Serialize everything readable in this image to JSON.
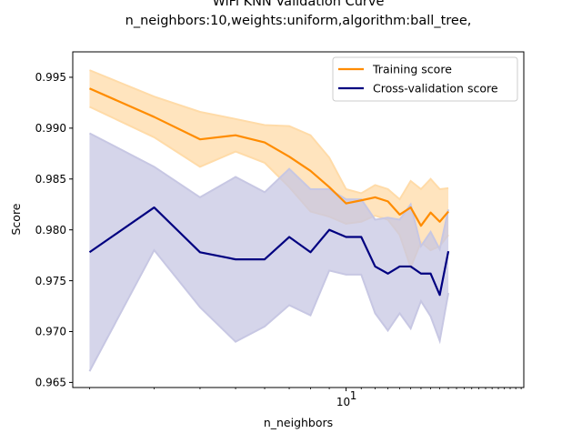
{
  "chart_data": {
    "type": "line",
    "title": "WiFi KNN Validation Curve",
    "subtitle": "n_neighbors:10,weights:uniform,algorithm:ball_tree,",
    "xlabel": "n_neighbors",
    "ylabel": "Score",
    "x_scale": "log",
    "xlim": [
      1.8,
      30.5
    ],
    "ylim": [
      0.9645,
      0.9975
    ],
    "yticks": [
      "0.965",
      "0.970",
      "0.975",
      "0.980",
      "0.985",
      "0.990",
      "0.995"
    ],
    "xtick_label": "10",
    "grid": false,
    "legend_position": "upper right",
    "x": [
      2,
      3,
      4,
      5,
      6,
      7,
      8,
      9,
      10,
      11,
      12,
      13,
      14,
      15,
      16,
      17,
      18,
      19
    ],
    "series": [
      {
        "name": "Training score",
        "color": "#ff8c00",
        "band_color": "#ffdba8",
        "mean": [
          0.9939,
          0.9911,
          0.9889,
          0.9893,
          0.9886,
          0.9872,
          0.9858,
          0.9842,
          0.9826,
          0.9829,
          0.9832,
          0.9828,
          0.9815,
          0.9822,
          0.9804,
          0.9817,
          0.9808,
          0.9818
        ],
        "lower": [
          0.9921,
          0.9891,
          0.9862,
          0.9877,
          0.9866,
          0.9842,
          0.9818,
          0.9813,
          0.9806,
          0.9808,
          0.9814,
          0.981,
          0.9795,
          0.9763,
          0.9788,
          0.978,
          0.9784,
          0.9795
        ],
        "upper": [
          0.9957,
          0.9931,
          0.9916,
          0.9909,
          0.9903,
          0.9902,
          0.9893,
          0.9871,
          0.984,
          0.9836,
          0.9844,
          0.984,
          0.983,
          0.9848,
          0.984,
          0.985,
          0.984,
          0.9841
        ]
      },
      {
        "name": "Cross-validation score",
        "color": "#000080",
        "band_color": "#c7c7e3",
        "mean": [
          0.9778,
          0.9822,
          0.9778,
          0.9771,
          0.9771,
          0.9793,
          0.9778,
          0.98,
          0.9793,
          0.9793,
          0.9764,
          0.9757,
          0.9764,
          0.9764,
          0.9757,
          0.9757,
          0.9736,
          0.9779
        ],
        "lower": [
          0.9661,
          0.978,
          0.9724,
          0.969,
          0.9705,
          0.9726,
          0.9716,
          0.976,
          0.9756,
          0.9756,
          0.9718,
          0.9701,
          0.9718,
          0.9703,
          0.973,
          0.9715,
          0.9691,
          0.9738
        ],
        "upper": [
          0.9895,
          0.9862,
          0.9832,
          0.9852,
          0.9837,
          0.986,
          0.984,
          0.984,
          0.983,
          0.983,
          0.981,
          0.9812,
          0.981,
          0.9825,
          0.9784,
          0.9798,
          0.9781,
          0.982
        ]
      }
    ]
  }
}
